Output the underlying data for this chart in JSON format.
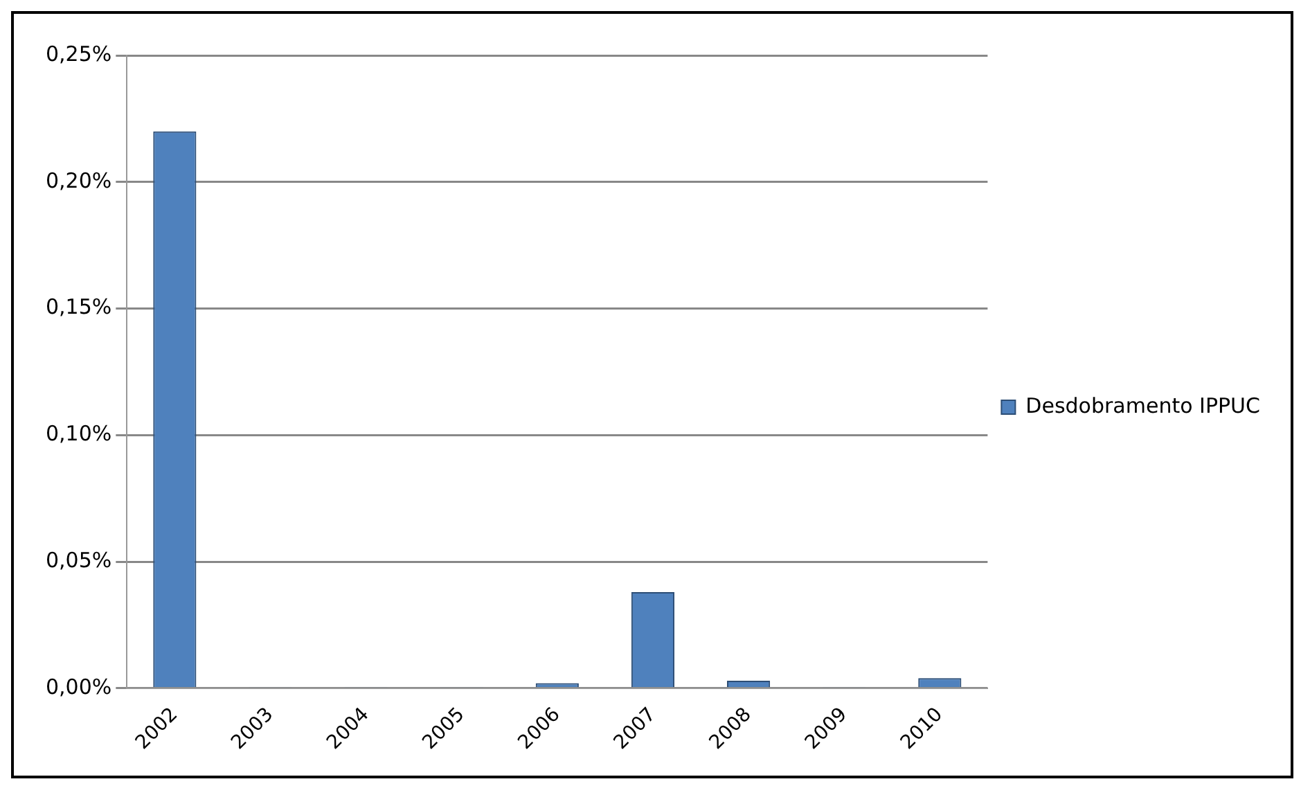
{
  "chart_data": {
    "type": "bar",
    "categories": [
      "2002",
      "2003",
      "2004",
      "2005",
      "2006",
      "2007",
      "2008",
      "2009",
      "2010"
    ],
    "series": [
      {
        "name": "Desdobramento IPPUC",
        "color": "#4f81bd",
        "values": [
          0.22,
          0.0005,
          0.0005,
          0.0005,
          0.002,
          0.038,
          0.003,
          0.0005,
          0.004
        ]
      }
    ],
    "ylim": [
      0,
      0.25
    ],
    "yticks": [
      {
        "value": 0,
        "label": "0,00%"
      },
      {
        "value": 0.05,
        "label": "0,05%"
      },
      {
        "value": 0.1,
        "label": "0,10%"
      },
      {
        "value": 0.15,
        "label": "0,15%"
      },
      {
        "value": 0.2,
        "label": "0,20%"
      },
      {
        "value": 0.25,
        "label": "0,25%"
      }
    ],
    "grid": "y",
    "legend": "right"
  }
}
